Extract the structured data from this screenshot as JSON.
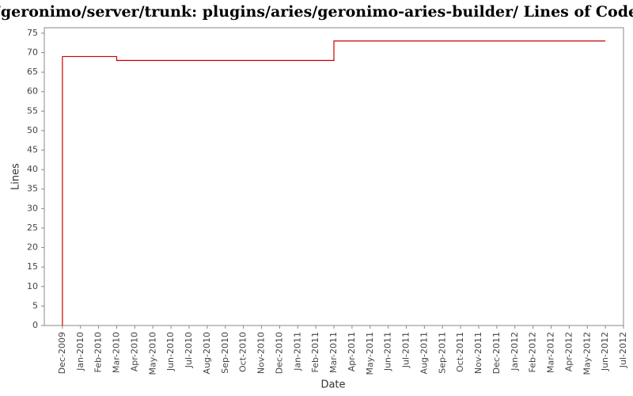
{
  "chart_data": {
    "type": "line",
    "title": "/geronimo/server/trunk: plugins/aries/geronimo-aries-builder/ Lines of Code",
    "x_label": "Date",
    "y_label": "Lines",
    "x": [
      "2009-12",
      "2009-12",
      "2010-03",
      "2010-03",
      "2011-03",
      "2011-03",
      "2012-06"
    ],
    "series": [
      {
        "name": "Lines",
        "color": "#cc0000",
        "values": [
          0,
          69,
          69,
          68,
          68,
          73,
          73
        ]
      }
    ],
    "xlim": [
      "2009-11",
      "2012-07"
    ],
    "xticks": [
      {
        "value": "2009-12",
        "label": "Dec-2009"
      },
      {
        "value": "2010-01",
        "label": "Jan-2010"
      },
      {
        "value": "2010-02",
        "label": "Feb-2010"
      },
      {
        "value": "2010-03",
        "label": "Mar-2010"
      },
      {
        "value": "2010-04",
        "label": "Apr-2010"
      },
      {
        "value": "2010-05",
        "label": "May-2010"
      },
      {
        "value": "2010-06",
        "label": "Jun-2010"
      },
      {
        "value": "2010-07",
        "label": "Jul-2010"
      },
      {
        "value": "2010-08",
        "label": "Aug-2010"
      },
      {
        "value": "2010-09",
        "label": "Sep-2010"
      },
      {
        "value": "2010-10",
        "label": "Oct-2010"
      },
      {
        "value": "2010-11",
        "label": "Nov-2010"
      },
      {
        "value": "2010-12",
        "label": "Dec-2010"
      },
      {
        "value": "2011-01",
        "label": "Jan-2011"
      },
      {
        "value": "2011-02",
        "label": "Feb-2011"
      },
      {
        "value": "2011-03",
        "label": "Mar-2011"
      },
      {
        "value": "2011-04",
        "label": "Apr-2011"
      },
      {
        "value": "2011-05",
        "label": "May-2011"
      },
      {
        "value": "2011-06",
        "label": "Jun-2011"
      },
      {
        "value": "2011-07",
        "label": "Jul-2011"
      },
      {
        "value": "2011-08",
        "label": "Aug-2011"
      },
      {
        "value": "2011-09",
        "label": "Sep-2011"
      },
      {
        "value": "2011-10",
        "label": "Oct-2011"
      },
      {
        "value": "2011-11",
        "label": "Nov-2011"
      },
      {
        "value": "2011-12",
        "label": "Dec-2011"
      },
      {
        "value": "2012-01",
        "label": "Jan-2012"
      },
      {
        "value": "2012-02",
        "label": "Feb-2012"
      },
      {
        "value": "2012-03",
        "label": "Mar-2012"
      },
      {
        "value": "2012-04",
        "label": "Apr-2012"
      },
      {
        "value": "2012-05",
        "label": "May-2012"
      },
      {
        "value": "2012-06",
        "label": "Jun-2012"
      },
      {
        "value": "2012-07",
        "label": "Jul-2012"
      }
    ],
    "ylim": [
      0,
      76.4
    ],
    "yticks": [
      0,
      5,
      10,
      15,
      20,
      25,
      30,
      35,
      40,
      45,
      50,
      55,
      60,
      65,
      70,
      75
    ],
    "grid": false
  }
}
